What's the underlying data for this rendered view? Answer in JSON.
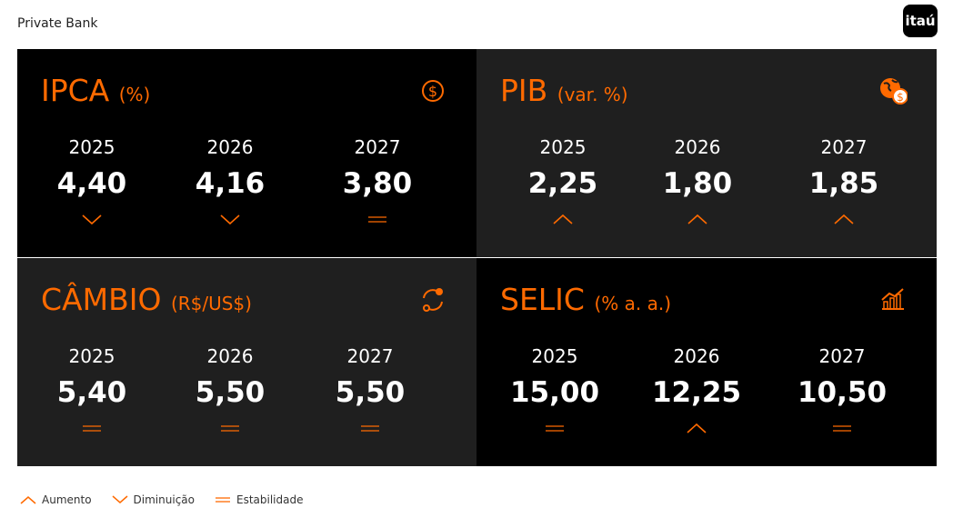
{
  "header": {
    "brand": "Private Bank",
    "logo": "itaú"
  },
  "colors": {
    "accent": "#ff6a00",
    "panel_dark": "#000000",
    "panel_gray": "#1f1f1f"
  },
  "panels": [
    {
      "title": "IPCA",
      "unit": "(%)",
      "icon": "dollar-coin-icon",
      "items": [
        {
          "year": "2025",
          "value": "4,40",
          "trend": "down"
        },
        {
          "year": "2026",
          "value": "4,16",
          "trend": "down"
        },
        {
          "year": "2027",
          "value": "3,80",
          "trend": "stable"
        }
      ]
    },
    {
      "title": "PIB",
      "unit": "(var. %)",
      "icon": "globe-dollar-icon",
      "items": [
        {
          "year": "2025",
          "value": "2,25",
          "trend": "up"
        },
        {
          "year": "2026",
          "value": "1,80",
          "trend": "up"
        },
        {
          "year": "2027",
          "value": "1,85",
          "trend": "up"
        }
      ]
    },
    {
      "title": "CÂMBIO",
      "unit": "(R$/US$)",
      "icon": "exchange-icon",
      "items": [
        {
          "year": "2025",
          "value": "5,40",
          "trend": "stable"
        },
        {
          "year": "2026",
          "value": "5,50",
          "trend": "stable"
        },
        {
          "year": "2027",
          "value": "5,50",
          "trend": "stable"
        }
      ]
    },
    {
      "title": "SELIC",
      "unit": "(% a. a.)",
      "icon": "chart-growth-icon",
      "items": [
        {
          "year": "2025",
          "value": "15,00",
          "trend": "stable"
        },
        {
          "year": "2026",
          "value": "12,25",
          "trend": "up"
        },
        {
          "year": "2027",
          "value": "10,50",
          "trend": "stable"
        }
      ]
    }
  ],
  "legend": {
    "up": "Aumento",
    "down": "Diminuição",
    "stable": "Estabilidade"
  }
}
